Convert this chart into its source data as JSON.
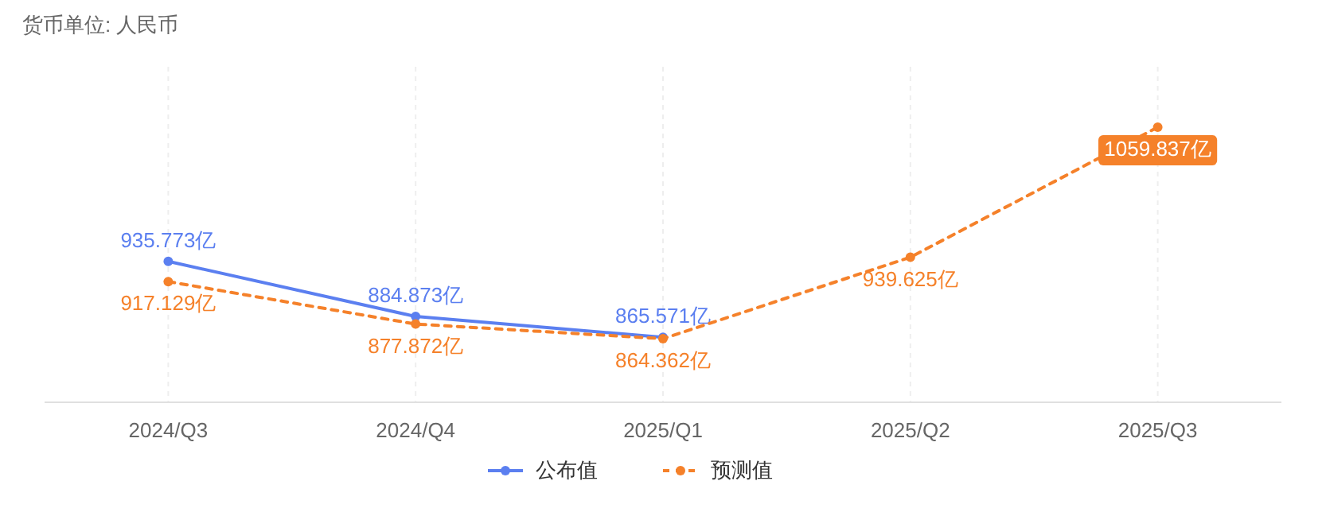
{
  "chart_data": {
    "type": "line",
    "annotations": [
      "货币单位: 人民币"
    ],
    "categories": [
      "2024/Q3",
      "2024/Q4",
      "2025/Q1",
      "2025/Q2",
      "2025/Q3"
    ],
    "series": [
      {
        "name": "公布值",
        "color": "#5b7ff0",
        "line_style": "solid",
        "values": [
          935.773,
          884.873,
          865.571,
          null,
          null
        ],
        "value_labels": [
          "935.773亿",
          "884.873亿",
          "865.571亿",
          null,
          null
        ]
      },
      {
        "name": "预测值",
        "color": "#f5812a",
        "line_style": "dashed",
        "values": [
          917.129,
          877.872,
          864.362,
          939.625,
          1059.837
        ],
        "value_labels": [
          "917.129亿",
          "877.872亿",
          "864.362亿",
          "939.625亿",
          "1059.837亿"
        ]
      }
    ],
    "grid": "x",
    "marker": "circle",
    "legend": "bottom"
  }
}
